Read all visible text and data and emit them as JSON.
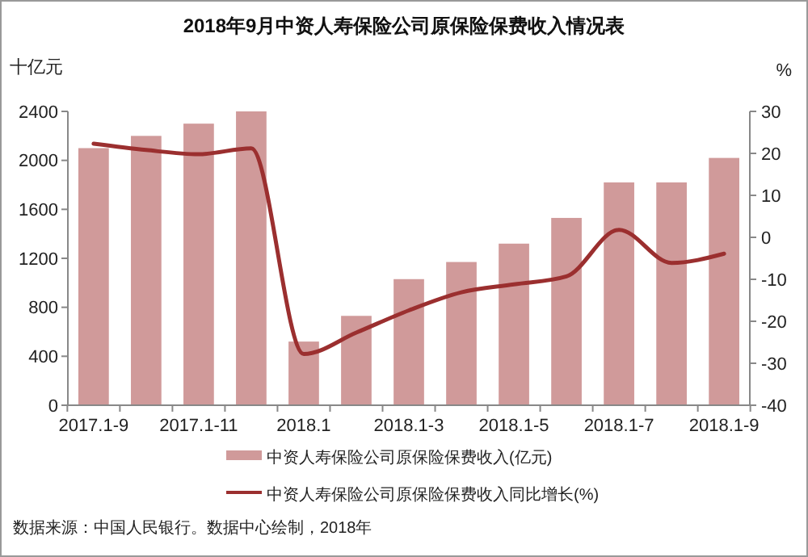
{
  "chart_data": {
    "type": "bar",
    "title": "2018年9月中资人寿保险公司原保险保费收入情况表",
    "ylabel": "十亿元",
    "y2label": "%",
    "categories": [
      "2017.1-9",
      null,
      "2017.1-11",
      null,
      "2018.1",
      null,
      "2018.1-3",
      null,
      "2018.1-5",
      null,
      "2018.1-7",
      null,
      "2018.1-9"
    ],
    "series": [
      {
        "name": "中资人寿保险公司原保险保费收入(亿元)",
        "color": "#d09a9a",
        "values": [
          2100,
          2200,
          2300,
          2400,
          520,
          730,
          1030,
          1170,
          1320,
          1530,
          1820,
          1820,
          2020
        ]
      },
      {
        "name": "中资人寿保险公司原保险保费收入同比增长(%)",
        "type": "line",
        "axis": "y2",
        "color": "#9b2f2f",
        "values": [
          22.3,
          20.8,
          19.8,
          21.2,
          -27.8,
          -22.7,
          -17.4,
          -13.1,
          -11.2,
          -9.3,
          1.8,
          -6.1,
          -3.9
        ]
      }
    ],
    "ylim": [
      0,
      2400
    ],
    "yticks": [
      0,
      400,
      800,
      1200,
      1600,
      2000,
      2400
    ],
    "y2lim": [
      -40,
      30
    ],
    "y2ticks": [
      -40,
      -30,
      -20,
      -10,
      0,
      10,
      20,
      30
    ],
    "legend": "bottom",
    "grid": false,
    "annotations": [
      "数据来源：中国人民银行。数据中心绘制，2018年"
    ]
  }
}
